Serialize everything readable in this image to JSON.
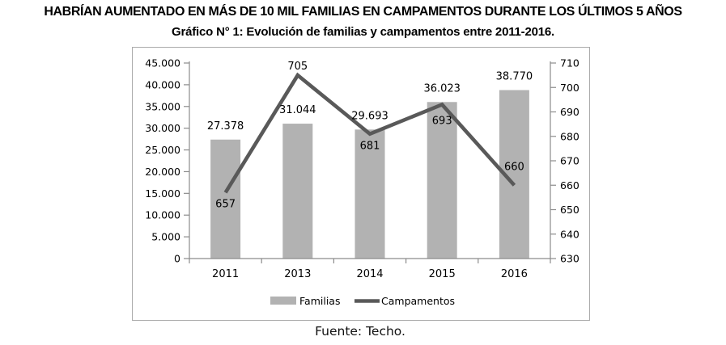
{
  "title": "HABRÍAN AUMENTADO EN MÁS DE 10 MIL FAMILIAS EN CAMPAMENTOS DURANTE LOS ÚLTIMOS 5 AÑOS",
  "subtitle": "Gráfico N° 1: Evolución de familias y campamentos entre 2011-2016.",
  "source": "Fuente: Techo.",
  "colors": {
    "bar": "#b2b2b2",
    "line": "#595959",
    "axis": "#8c8c8c",
    "chart_border": "#ababab",
    "text": "#000000"
  },
  "chart_data": {
    "type": "bar",
    "subtype": "combo-bar-line-dual-axis",
    "categories": [
      "2011",
      "2013",
      "2014",
      "2015",
      "2016"
    ],
    "series": [
      {
        "name": "Familias",
        "type": "bar",
        "axis": "left",
        "values": [
          27378,
          31044,
          29693,
          36023,
          38770
        ],
        "labels": [
          "27.378",
          "31.044",
          "29.693",
          "36.023",
          "38.770"
        ]
      },
      {
        "name": "Campamentos",
        "type": "line",
        "axis": "right",
        "values": [
          657,
          705,
          681,
          693,
          660
        ],
        "labels": [
          "657",
          "705",
          "681",
          "693",
          "660"
        ]
      }
    ],
    "left_axis": {
      "min": 0,
      "max": 45000,
      "step": 5000,
      "tick_labels": [
        "0",
        "5.000",
        "10.000",
        "15.000",
        "20.000",
        "25.000",
        "30.000",
        "35.000",
        "40.000",
        "45.000"
      ]
    },
    "right_axis": {
      "min": 630,
      "max": 710,
      "step": 10,
      "tick_labels": [
        "630",
        "640",
        "650",
        "660",
        "670",
        "680",
        "690",
        "700",
        "710"
      ]
    },
    "legend": [
      {
        "label": "Familias",
        "swatch": "bar"
      },
      {
        "label": "Campamentos",
        "swatch": "line"
      }
    ],
    "legend_position": "bottom",
    "grid": false
  }
}
